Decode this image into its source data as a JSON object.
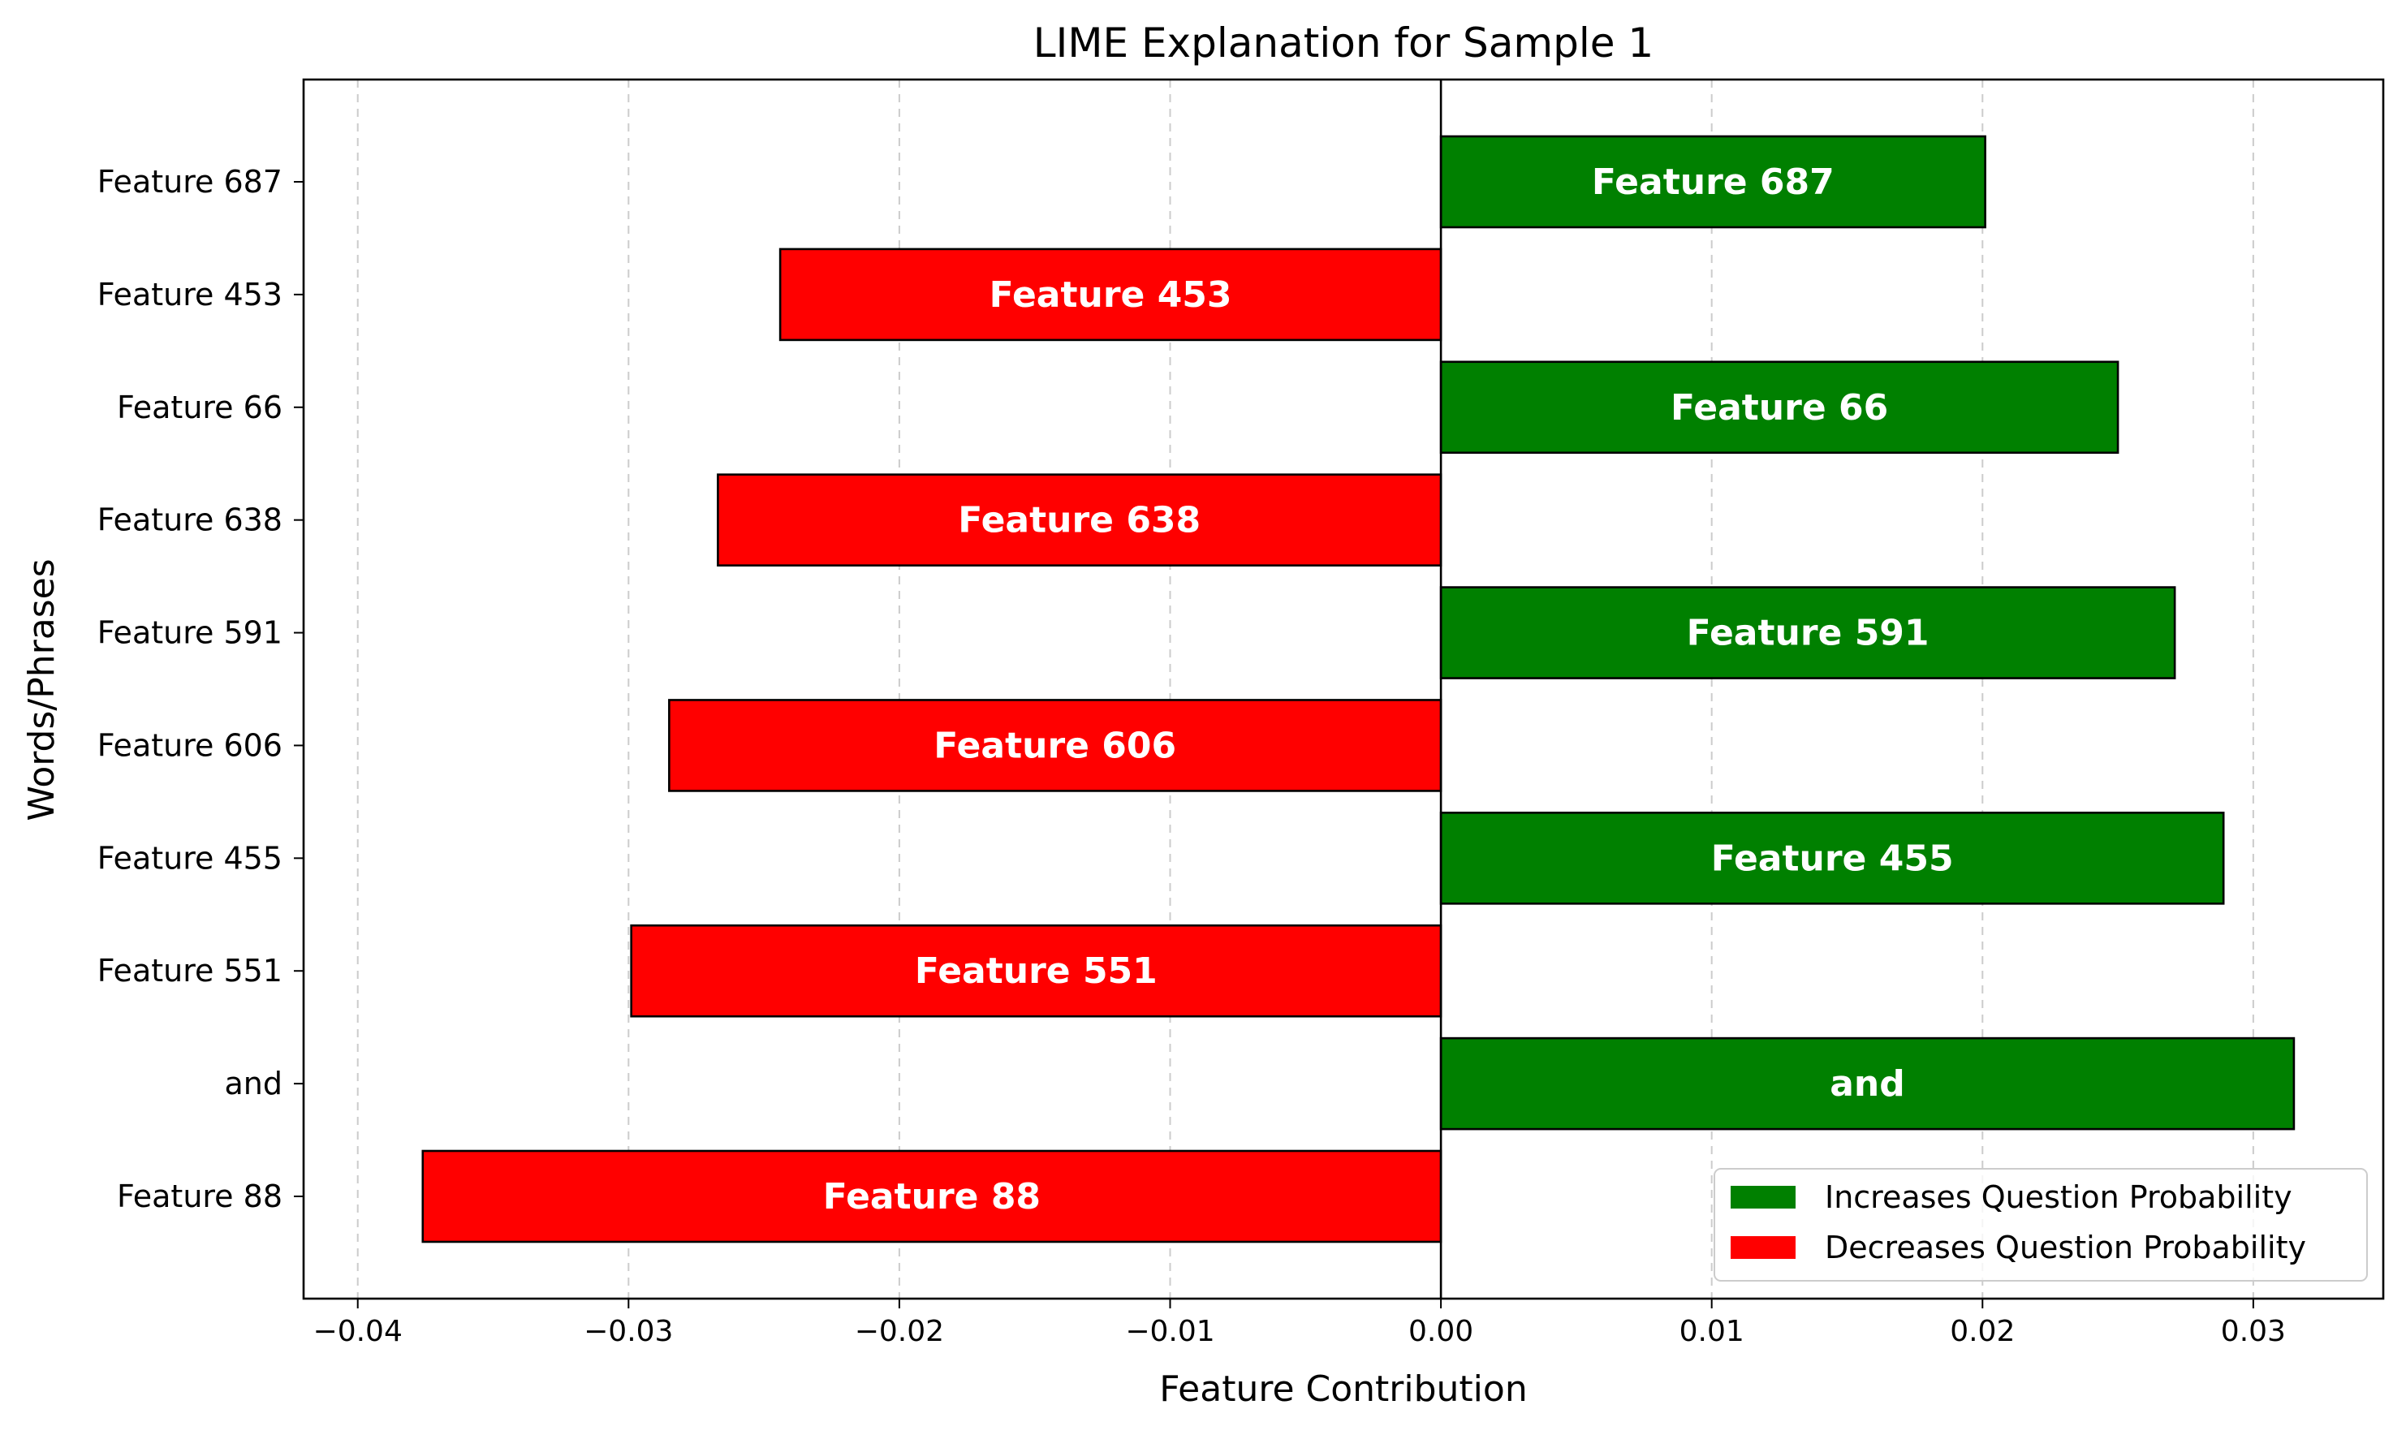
{
  "chart_data": {
    "type": "bar",
    "orientation": "horizontal",
    "title": "LIME Explanation for Sample 1",
    "xlabel": "Feature Contribution",
    "ylabel": "Words/Phrases",
    "xlim": [
      -0.042,
      0.0348
    ],
    "xticks": [
      -0.04,
      -0.03,
      -0.02,
      -0.01,
      0.0,
      0.01,
      0.02,
      0.03
    ],
    "xtick_labels": [
      "−0.04",
      "−0.03",
      "−0.02",
      "−0.01",
      "0.00",
      "0.01",
      "0.02",
      "0.03"
    ],
    "grid": "x-dashed",
    "categories": [
      "Feature 687",
      "Feature 453",
      "Feature 66",
      "Feature 638",
      "Feature 591",
      "Feature 606",
      "Feature 455",
      "Feature 551",
      "and",
      "Feature 88"
    ],
    "values": [
      0.0201,
      -0.0244,
      0.025,
      -0.0267,
      0.0271,
      -0.0285,
      0.0289,
      -0.0299,
      0.0315,
      -0.0376
    ],
    "bar_labels": [
      "Feature 687",
      "Feature 453",
      "Feature 66",
      "Feature 638",
      "Feature 591",
      "Feature 606",
      "Feature 455",
      "Feature 551",
      "and",
      "Feature 88"
    ],
    "colors": {
      "positive": "#008000",
      "negative": "#ff0000",
      "edge": "#000000",
      "grid": "#cccccc"
    },
    "legend": {
      "position": "lower-right",
      "items": [
        {
          "label": "Increases Question Probability",
          "color": "#008000"
        },
        {
          "label": "Decreases Question Probability",
          "color": "#ff0000"
        }
      ]
    }
  }
}
